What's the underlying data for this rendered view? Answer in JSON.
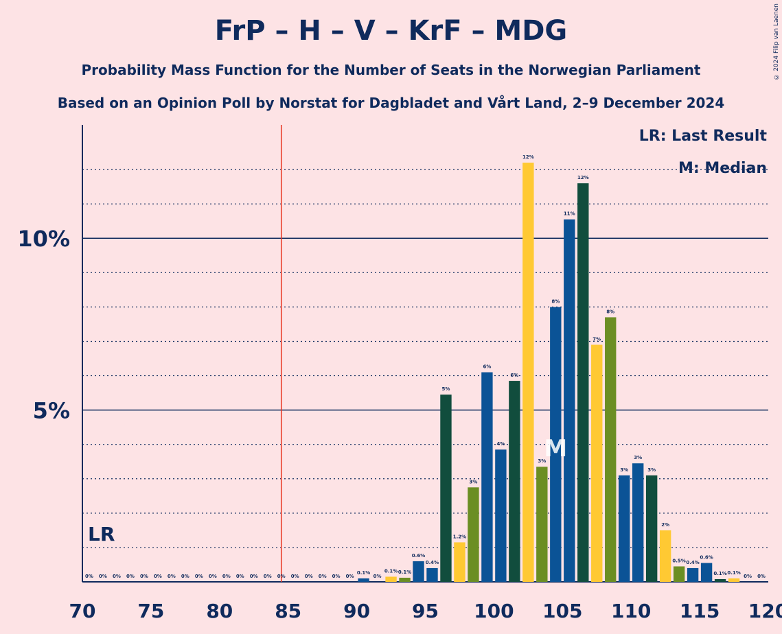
{
  "title": "FrP – H – V – KrF – MDG",
  "subtitle": "Probability Mass Function for the Number of Seats in the Norwegian Parliament",
  "subtitle2": "Based on an Opinion Poll by Norstat for Dagbladet and Vårt Land, 2–9 December 2024",
  "copyright": "© 2024 Filip van Laenen",
  "legend": {
    "lr": "LR: Last Result",
    "median": "M: Median"
  },
  "chart_data": {
    "type": "bar",
    "x": [
      71,
      72,
      73,
      74,
      75,
      76,
      77,
      78,
      79,
      80,
      81,
      82,
      83,
      84,
      85,
      86,
      87,
      88,
      89,
      90,
      91,
      92,
      93,
      94,
      95,
      96,
      97,
      98,
      99,
      100,
      101,
      102,
      103,
      104,
      105,
      106,
      107,
      108,
      109,
      110,
      111,
      112,
      113,
      114,
      115,
      116,
      117,
      118,
      119,
      120
    ],
    "values": [
      0,
      0,
      0,
      0,
      0,
      0,
      0,
      0,
      0,
      0,
      0,
      0,
      0,
      0,
      0,
      0,
      0,
      0,
      0,
      0,
      0.1,
      0,
      0.15,
      0.12,
      0.6,
      0.4,
      5.45,
      1.15,
      2.75,
      6.1,
      3.85,
      5.85,
      12.2,
      3.35,
      8.0,
      10.55,
      11.6,
      6.9,
      7.7,
      3.1,
      3.45,
      3.1,
      1.5,
      0.45,
      0.4,
      0.55,
      0.08,
      0.1,
      0,
      0
    ],
    "labels": [
      "0%",
      "0%",
      "0%",
      "0%",
      "0%",
      "0%",
      "0%",
      "0%",
      "0%",
      "0%",
      "0%",
      "0%",
      "0%",
      "0%",
      "0%",
      "0%",
      "0%",
      "0%",
      "0%",
      "0%",
      "0.1%",
      "0%",
      "0.1%",
      "0.1%",
      "0.6%",
      "0.4%",
      "5%",
      "1.2%",
      "3%",
      "6%",
      "4%",
      "6%",
      "12%",
      "3%",
      "8%",
      "11%",
      "12%",
      "7%",
      "8%",
      "3%",
      "3%",
      "3%",
      "2%",
      "0.5%",
      "0.4%",
      "0.6%",
      "0.1%",
      "0.1%",
      "0%",
      "0%"
    ],
    "colors": [
      "#0B5396",
      "#0B5396",
      "#0B5396",
      "#0B5396",
      "#0B5396",
      "#0B5396",
      "#0B5396",
      "#0B5396",
      "#0B5396",
      "#0B5396",
      "#0B5396",
      "#0B5396",
      "#0B5396",
      "#0B5396",
      "#0B5396",
      "#0B5396",
      "#0B5396",
      "#0B5396",
      "#0B5396",
      "#0B5396",
      "#0B5396",
      "#0B5396",
      "#FFC933",
      "#6B8E23",
      "#0B5396",
      "#0B5396",
      "#114D3D",
      "#FFC933",
      "#6B8E23",
      "#0B5396",
      "#0B5396",
      "#114D3D",
      "#FFC933",
      "#6B8E23",
      "#0B5396",
      "#0B5396",
      "#114D3D",
      "#FFC933",
      "#6B8E23",
      "#0B5396",
      "#0B5396",
      "#114D3D",
      "#FFC933",
      "#6B8E23",
      "#0B5396",
      "#0B5396",
      "#114D3D",
      "#FFC933",
      "#6B8E23",
      "#0B5396"
    ],
    "x_ticks": [
      70,
      75,
      80,
      85,
      90,
      95,
      100,
      105,
      110,
      115,
      120
    ],
    "y_ticks": [
      {
        "value": 5,
        "label": "5%"
      },
      {
        "value": 10,
        "label": "10%"
      }
    ],
    "ylim": [
      0,
      13.3
    ],
    "xlim": [
      70,
      120
    ],
    "last_result": {
      "seat": 85,
      "label": "LR"
    },
    "median": {
      "seat": 105,
      "label": "M"
    },
    "grid": "dotted"
  }
}
